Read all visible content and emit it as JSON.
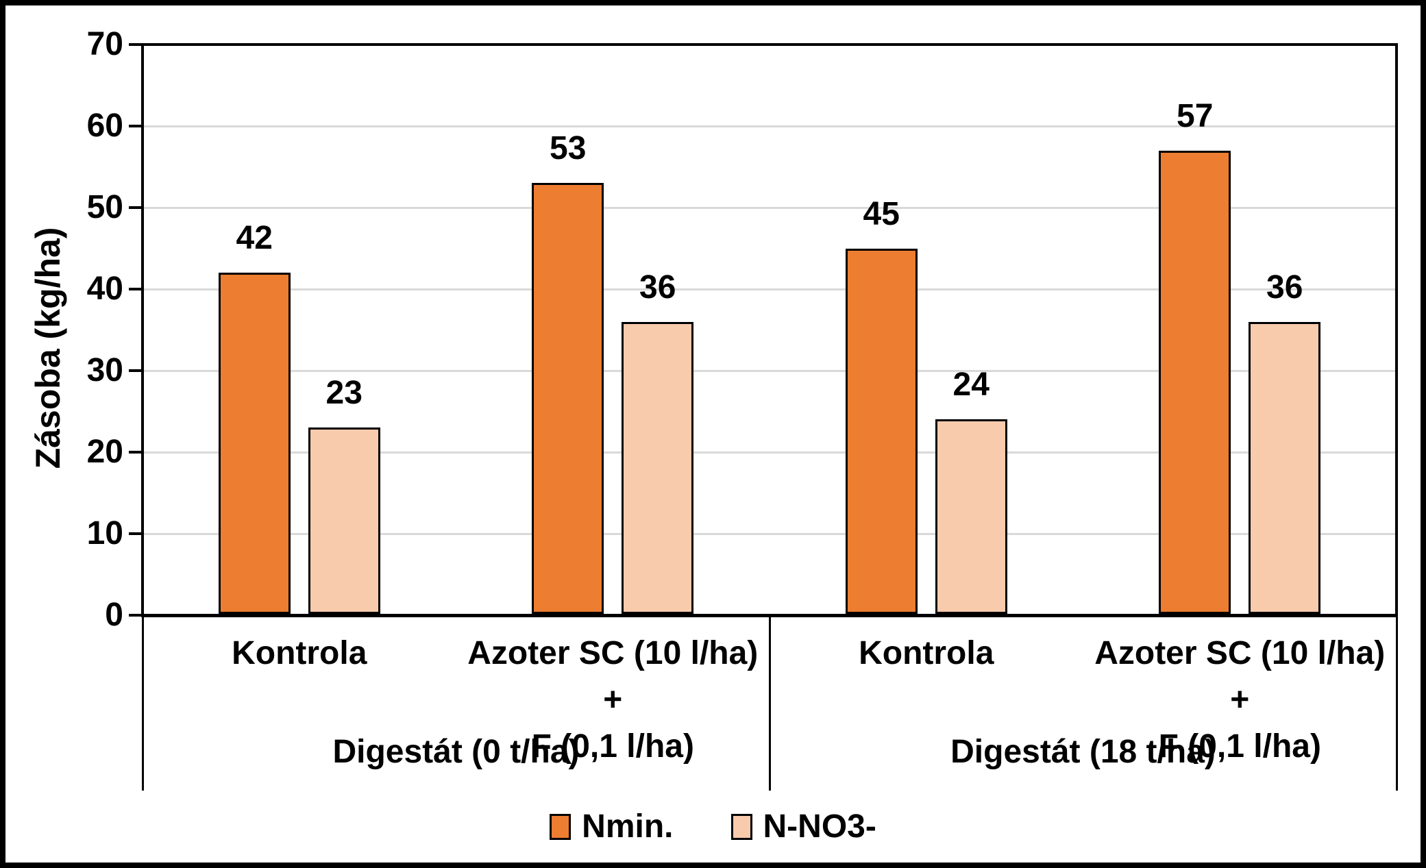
{
  "chart_data": {
    "type": "bar",
    "title": "",
    "ylabel": "Zásoba (kg/ha)",
    "xlabel": "",
    "ylim": [
      0,
      70
    ],
    "yticks": [
      0,
      10,
      20,
      30,
      40,
      50,
      60,
      70
    ],
    "grid": true,
    "data_labels": true,
    "legend_position": "bottom-center",
    "gridline_color": "#D9D9D9",
    "bar_outline_color": "#000000",
    "axis_color": "#000000",
    "series": [
      {
        "name": "Nmin.",
        "color": "#ED7D31",
        "values": [
          42,
          53,
          45,
          57
        ]
      },
      {
        "name": "N-NO3-",
        "color": "#F8CBAD",
        "values": [
          23,
          36,
          24,
          36
        ]
      }
    ],
    "categories": [
      {
        "lines": [
          "Kontrola"
        ],
        "group": 0
      },
      {
        "lines": [
          "Azoter SC (10 l/ha) +",
          "F (0,1 l/ha)"
        ],
        "group": 0
      },
      {
        "lines": [
          "Kontrola"
        ],
        "group": 1
      },
      {
        "lines": [
          "Azoter SC (10 l/ha) +",
          "F (0,1 l/ha)"
        ],
        "group": 1
      }
    ],
    "groups": [
      {
        "label": "Digestát (0 t/ha)"
      },
      {
        "label": "Digestát (18 t/ha)"
      }
    ]
  }
}
